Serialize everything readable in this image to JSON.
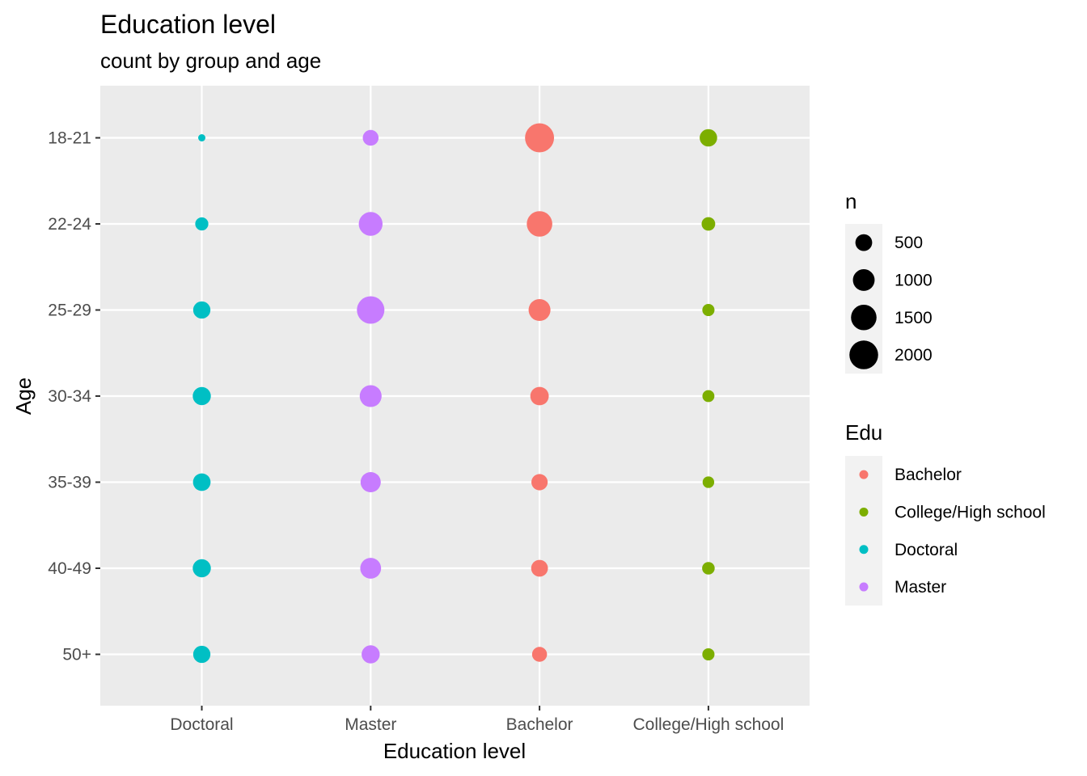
{
  "chart_data": {
    "type": "scatter",
    "title": "Education level",
    "subtitle": "count by group and age",
    "xlabel": "Education level",
    "ylabel": "Age",
    "x_categories": [
      "Doctoral",
      "Master",
      "Bachelor",
      "College/High school"
    ],
    "y_categories": [
      "18-21",
      "22-24",
      "25-29",
      "30-34",
      "35-39",
      "40-49",
      "50+"
    ],
    "grid": true,
    "legend_position": "right",
    "size_legend": {
      "title": "n",
      "values": [
        500,
        1000,
        1500,
        2000
      ]
    },
    "color_legend": {
      "title": "Edu",
      "entries": [
        {
          "label": "Bachelor",
          "color": "#F8766D"
        },
        {
          "label": "College/High school",
          "color": "#7CAE00"
        },
        {
          "label": "Doctoral",
          "color": "#00BFC4"
        },
        {
          "label": "Master",
          "color": "#C77CFF"
        }
      ]
    },
    "series": [
      {
        "name": "Doctoral",
        "x": "Doctoral",
        "color": "#00BFC4",
        "points": [
          {
            "y": "18-21",
            "n": 20
          },
          {
            "y": "22-24",
            "n": 240
          },
          {
            "y": "25-29",
            "n": 540
          },
          {
            "y": "30-34",
            "n": 620
          },
          {
            "y": "35-39",
            "n": 570
          },
          {
            "y": "40-49",
            "n": 620
          },
          {
            "y": "50+",
            "n": 540
          }
        ]
      },
      {
        "name": "Master",
        "x": "Master",
        "color": "#C77CFF",
        "points": [
          {
            "y": "18-21",
            "n": 420
          },
          {
            "y": "22-24",
            "n": 1260
          },
          {
            "y": "25-29",
            "n": 1800
          },
          {
            "y": "30-34",
            "n": 1020
          },
          {
            "y": "35-39",
            "n": 830
          },
          {
            "y": "40-49",
            "n": 900
          },
          {
            "y": "50+",
            "n": 620
          }
        ]
      },
      {
        "name": "Bachelor",
        "x": "Bachelor",
        "color": "#F8766D",
        "points": [
          {
            "y": "18-21",
            "n": 2050
          },
          {
            "y": "22-24",
            "n": 1500
          },
          {
            "y": "25-29",
            "n": 1020
          },
          {
            "y": "30-34",
            "n": 650
          },
          {
            "y": "35-39",
            "n": 460
          },
          {
            "y": "40-49",
            "n": 500
          },
          {
            "y": "50+",
            "n": 360
          }
        ]
      },
      {
        "name": "College/High school",
        "x": "College/High school",
        "color": "#7CAE00",
        "points": [
          {
            "y": "18-21",
            "n": 560
          },
          {
            "y": "22-24",
            "n": 270
          },
          {
            "y": "25-29",
            "n": 190
          },
          {
            "y": "30-34",
            "n": 180
          },
          {
            "y": "35-39",
            "n": 160
          },
          {
            "y": "40-49",
            "n": 210
          },
          {
            "y": "50+",
            "n": 190
          }
        ]
      }
    ]
  }
}
